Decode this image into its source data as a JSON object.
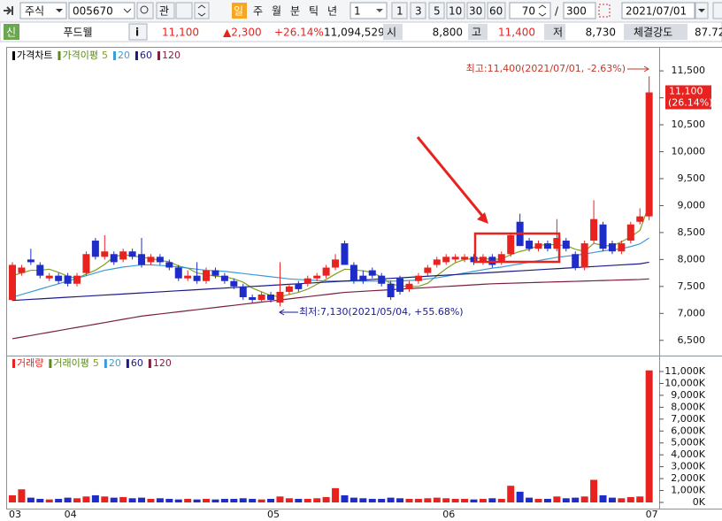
{
  "toolbar": {
    "market": "주식",
    "code": "005670",
    "watch": "관",
    "periods": [
      "일",
      "주",
      "월",
      "분",
      "틱",
      "년"
    ],
    "interval": "1",
    "intervals": [
      "1",
      "3",
      "5",
      "10",
      "30",
      "60"
    ],
    "count": "70",
    "separator": "/",
    "total": "300",
    "date": "2021/07/01"
  },
  "info_bar": {
    "badge": "신",
    "name": "푸드웰",
    "info": "i",
    "price": "11,100",
    "change": "▲2,300",
    "change_rate": "+26.14%",
    "volume": "11,094,529",
    "open_label": "시",
    "open": "8,800",
    "high_label": "고",
    "high": "11,400",
    "low_label": "저",
    "low": "8,730",
    "strength_label": "체결강도",
    "strength": "87.72"
  },
  "chart_data": [
    {
      "type": "candlestick",
      "title": "가격차트",
      "title_color": "#000000",
      "ma_label": "가격이평",
      "ma_label_color": "#5a8a1a",
      "up_color": "#e8231f",
      "down_color": "#1e2cc8",
      "categories": [
        "03",
        null,
        null,
        null,
        null,
        null,
        "04",
        null,
        null,
        null,
        null,
        null,
        null,
        null,
        null,
        null,
        null,
        null,
        null,
        null,
        null,
        null,
        null,
        null,
        null,
        null,
        null,
        null,
        "05",
        null,
        null,
        null,
        null,
        null,
        null,
        null,
        null,
        null,
        null,
        null,
        null,
        null,
        null,
        null,
        null,
        null,
        null,
        "06",
        null,
        null,
        null,
        null,
        null,
        null,
        null,
        null,
        null,
        null,
        null,
        null,
        null,
        null,
        null,
        null,
        null,
        null,
        null,
        null,
        null,
        "07"
      ],
      "open": [
        7250,
        7750,
        8000,
        7900,
        7650,
        7700,
        7700,
        7550,
        7750,
        8350,
        8050,
        8100,
        8000,
        8150,
        8100,
        7950,
        8050,
        7950,
        7850,
        7650,
        7700,
        7600,
        7800,
        7700,
        7600,
        7500,
        7300,
        7250,
        7350,
        7200,
        7400,
        7550,
        7550,
        7650,
        7700,
        7850,
        8300,
        7900,
        7700,
        7800,
        7700,
        7550,
        7650,
        7450,
        7600,
        7750,
        7900,
        7950,
        8000,
        8000,
        8050,
        7950,
        8050,
        7950,
        8100,
        8700,
        8350,
        8200,
        8300,
        8200,
        8350,
        8100,
        7850,
        8350,
        8650,
        8300,
        8150,
        8350,
        8700,
        8800
      ],
      "high": [
        7950,
        7900,
        8200,
        7950,
        7750,
        7750,
        7750,
        7750,
        8150,
        8400,
        8450,
        8150,
        8200,
        8200,
        8400,
        8100,
        8100,
        8000,
        7900,
        7800,
        7950,
        7850,
        7850,
        7750,
        7650,
        7550,
        7350,
        7400,
        7400,
        7950,
        7550,
        7600,
        7700,
        7750,
        7900,
        8100,
        8350,
        7950,
        7800,
        7850,
        7750,
        7600,
        7700,
        7600,
        7750,
        7900,
        8050,
        8100,
        8100,
        8100,
        8100,
        8100,
        8100,
        8150,
        8500,
        8850,
        8400,
        8350,
        8350,
        8750,
        8400,
        8150,
        8350,
        9100,
        8700,
        8350,
        8350,
        8700,
        8950,
        11400
      ],
      "low": [
        7230,
        7700,
        7900,
        7650,
        7600,
        7550,
        7500,
        7500,
        7700,
        8000,
        8000,
        7900,
        7950,
        8000,
        7850,
        7900,
        7900,
        7800,
        7600,
        7600,
        7550,
        7550,
        7650,
        7550,
        7450,
        7250,
        7200,
        7200,
        7200,
        7130,
        7350,
        7400,
        7500,
        7600,
        7650,
        7800,
        7900,
        7550,
        7550,
        7650,
        7500,
        7250,
        7350,
        7400,
        7550,
        7700,
        7850,
        7900,
        7950,
        7950,
        7900,
        7900,
        7850,
        7900,
        8050,
        8250,
        8150,
        8150,
        8150,
        8150,
        8150,
        7800,
        7800,
        8300,
        8150,
        8100,
        8100,
        8300,
        8650,
        8730
      ],
      "close": [
        7900,
        7850,
        7950,
        7700,
        7700,
        7600,
        7550,
        7700,
        8100,
        8050,
        8150,
        7950,
        8150,
        8050,
        7900,
        8050,
        7950,
        7850,
        7650,
        7700,
        7600,
        7800,
        7700,
        7600,
        7500,
        7300,
        7250,
        7350,
        7250,
        7400,
        7500,
        7450,
        7650,
        7700,
        7850,
        8000,
        7900,
        7600,
        7600,
        7700,
        7550,
        7300,
        7400,
        7550,
        7700,
        7850,
        8000,
        8050,
        8050,
        8050,
        7950,
        8050,
        7900,
        8100,
        8450,
        8250,
        8200,
        8300,
        8200,
        8400,
        8200,
        7850,
        8300,
        8750,
        8200,
        8150,
        8300,
        8650,
        8800,
        11100
      ],
      "series": [
        {
          "name": "5",
          "color": "#7f9f22",
          "values": [
            7700,
            7750,
            7800,
            7800,
            7820,
            7760,
            7690,
            7650,
            7730,
            7800,
            7910,
            8050,
            8090,
            8070,
            8040,
            8020,
            7980,
            7960,
            7880,
            7840,
            7750,
            7720,
            7690,
            7680,
            7640,
            7580,
            7470,
            7400,
            7330,
            7310,
            7350,
            7390,
            7450,
            7540,
            7630,
            7730,
            7820,
            7810,
            7790,
            7760,
            7670,
            7550,
            7510,
            7500,
            7500,
            7560,
            7700,
            7830,
            7940,
            8000,
            8020,
            8020,
            8000,
            8010,
            8090,
            8150,
            8190,
            8260,
            8280,
            8270,
            8260,
            8190,
            8150,
            8300,
            8260,
            8250,
            8330,
            8420,
            8540,
            9020
          ]
        },
        {
          "name": "20",
          "color": "#3b9bd8",
          "values": [
            7300,
            7350,
            7400,
            7450,
            7500,
            7550,
            7600,
            7650,
            7700,
            7750,
            7800,
            7830,
            7860,
            7880,
            7900,
            7900,
            7890,
            7880,
            7860,
            7840,
            7820,
            7800,
            7790,
            7780,
            7760,
            7740,
            7720,
            7700,
            7680,
            7660,
            7640,
            7630,
            7620,
            7610,
            7600,
            7600,
            7600,
            7600,
            7600,
            7600,
            7600,
            7600,
            7600,
            7610,
            7620,
            7640,
            7660,
            7690,
            7720,
            7750,
            7780,
            7810,
            7840,
            7860,
            7890,
            7920,
            7950,
            7980,
            8010,
            8040,
            8060,
            8080,
            8100,
            8130,
            8160,
            8180,
            8200,
            8240,
            8290,
            8400
          ]
        },
        {
          "name": "60",
          "color": "#1a1a8c",
          "values": [
            7240,
            7250,
            7260,
            7270,
            7280,
            7290,
            7300,
            7310,
            7320,
            7330,
            7340,
            7350,
            7360,
            7370,
            7380,
            7390,
            7400,
            7410,
            7420,
            7430,
            7440,
            7450,
            7460,
            7470,
            7480,
            7490,
            7500,
            7510,
            7520,
            7530,
            7540,
            7550,
            7560,
            7570,
            7580,
            7590,
            7600,
            7610,
            7620,
            7630,
            7640,
            7650,
            7660,
            7670,
            7680,
            7690,
            7700,
            7710,
            7720,
            7730,
            7740,
            7750,
            7760,
            7770,
            7780,
            7790,
            7800,
            7810,
            7820,
            7830,
            7840,
            7850,
            7860,
            7870,
            7880,
            7890,
            7900,
            7910,
            7920,
            7950
          ]
        },
        {
          "name": "120",
          "color": "#7a1f3d",
          "values": [
            6530,
            6560,
            6590,
            6620,
            6650,
            6680,
            6710,
            6740,
            6770,
            6800,
            6830,
            6860,
            6890,
            6920,
            6950,
            6970,
            6990,
            7010,
            7030,
            7050,
            7070,
            7090,
            7110,
            7130,
            7150,
            7170,
            7190,
            7210,
            7230,
            7250,
            7270,
            7290,
            7310,
            7330,
            7350,
            7370,
            7390,
            7400,
            7410,
            7420,
            7430,
            7440,
            7450,
            7460,
            7470,
            7480,
            7490,
            7500,
            7510,
            7520,
            7530,
            7540,
            7550,
            7555,
            7560,
            7565,
            7570,
            7575,
            7580,
            7585,
            7590,
            7595,
            7600,
            7605,
            7610,
            7615,
            7620,
            7625,
            7630,
            7640
          ]
        }
      ],
      "ylim": [
        6250,
        11830
      ],
      "yticks": [
        {
          "value": 6500,
          "label": "6,500"
        },
        {
          "value": 7000,
          "label": "7,000"
        },
        {
          "value": 7500,
          "label": "7,500"
        },
        {
          "value": 8000,
          "label": "8,000"
        },
        {
          "value": 8500,
          "label": "8,500"
        },
        {
          "value": 9000,
          "label": "9,000"
        },
        {
          "value": 9500,
          "label": "9,500"
        },
        {
          "value": 10000,
          "label": "10,000"
        },
        {
          "value": 10500,
          "label": "10,500"
        },
        {
          "value": 11000,
          "label": "11,000"
        },
        {
          "value": 11500,
          "label": "11,500"
        }
      ],
      "grid": false,
      "annotations": {
        "high": "최고:11,400(2021/07/01, -2.63%)",
        "low": "최저:7,130(2021/05/04, +55.68%)"
      },
      "last_label": {
        "value": 11100,
        "price": "11,100",
        "change": "(26.14%)"
      }
    },
    {
      "type": "bar",
      "title": "거래량",
      "title_color": "#e8231f",
      "ma_label": "거래이평",
      "ma_label_color": "#5a8a1a",
      "ma_legend": [
        {
          "name": "5",
          "color": "#7f9f22"
        },
        {
          "name": "20",
          "color": "#3b9bd8"
        },
        {
          "name": "60",
          "color": "#1a1a8c"
        },
        {
          "name": "120",
          "color": "#7a1f3d"
        }
      ],
      "values": [
        600000,
        1100000,
        400000,
        300000,
        250000,
        300000,
        400000,
        350000,
        500000,
        600000,
        500000,
        400000,
        450000,
        350000,
        400000,
        300000,
        350000,
        300000,
        250000,
        300000,
        250000,
        300000,
        250000,
        300000,
        300000,
        350000,
        300000,
        250000,
        300000,
        500000,
        350000,
        300000,
        300000,
        350000,
        450000,
        1200000,
        600000,
        400000,
        350000,
        300000,
        300000,
        400000,
        350000,
        300000,
        300000,
        350000,
        400000,
        350000,
        300000,
        300000,
        250000,
        300000,
        350000,
        300000,
        1400000,
        900000,
        400000,
        300000,
        300000,
        500000,
        350000,
        400000,
        500000,
        1900000,
        600000,
        400000,
        350000,
        450000,
        500000,
        11094529
      ],
      "ylim": [
        -520000,
        12190000
      ],
      "yticks": [
        {
          "value": 0,
          "label": "0K"
        },
        {
          "value": 1000000,
          "label": "1,000K"
        },
        {
          "value": 2000000,
          "label": "2,000K"
        },
        {
          "value": 3000000,
          "label": "3,000K"
        },
        {
          "value": 4000000,
          "label": "4,000K"
        },
        {
          "value": 5000000,
          "label": "5,000K"
        },
        {
          "value": 6000000,
          "label": "6,000K"
        },
        {
          "value": 7000000,
          "label": "7,000K"
        },
        {
          "value": 8000000,
          "label": "8,000K"
        },
        {
          "value": 9000000,
          "label": "9,000K"
        },
        {
          "value": 10000000,
          "label": "10,000K"
        },
        {
          "value": 11000000,
          "label": "11,000K"
        }
      ],
      "grid": false
    }
  ]
}
